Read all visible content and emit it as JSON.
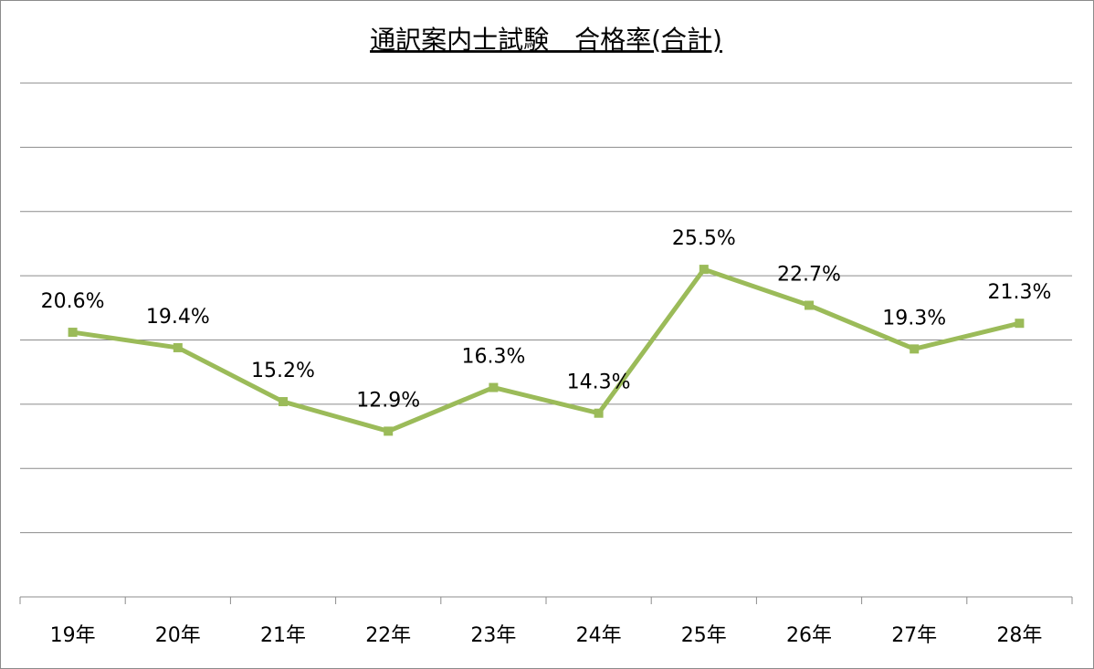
{
  "chart_data": {
    "type": "line",
    "title": "通訳案内士試験　合格率(合計)",
    "categories": [
      "19年",
      "20年",
      "21年",
      "22年",
      "23年",
      "24年",
      "25年",
      "26年",
      "27年",
      "28年"
    ],
    "series": [
      {
        "name": "合格率",
        "color": "#9bbb59",
        "values": [
          20.6,
          19.4,
          15.2,
          12.9,
          16.3,
          14.3,
          25.5,
          22.7,
          19.3,
          21.3
        ],
        "value_labels": [
          "20.6%",
          "19.4%",
          "15.2%",
          "12.9%",
          "16.3%",
          "14.3%",
          "25.5%",
          "22.7%",
          "19.3%",
          "21.3%"
        ]
      }
    ],
    "ylim": [
      0,
      40
    ],
    "yticks": [
      0,
      5,
      10,
      15,
      20,
      25,
      30,
      35,
      40
    ],
    "grid": true
  }
}
